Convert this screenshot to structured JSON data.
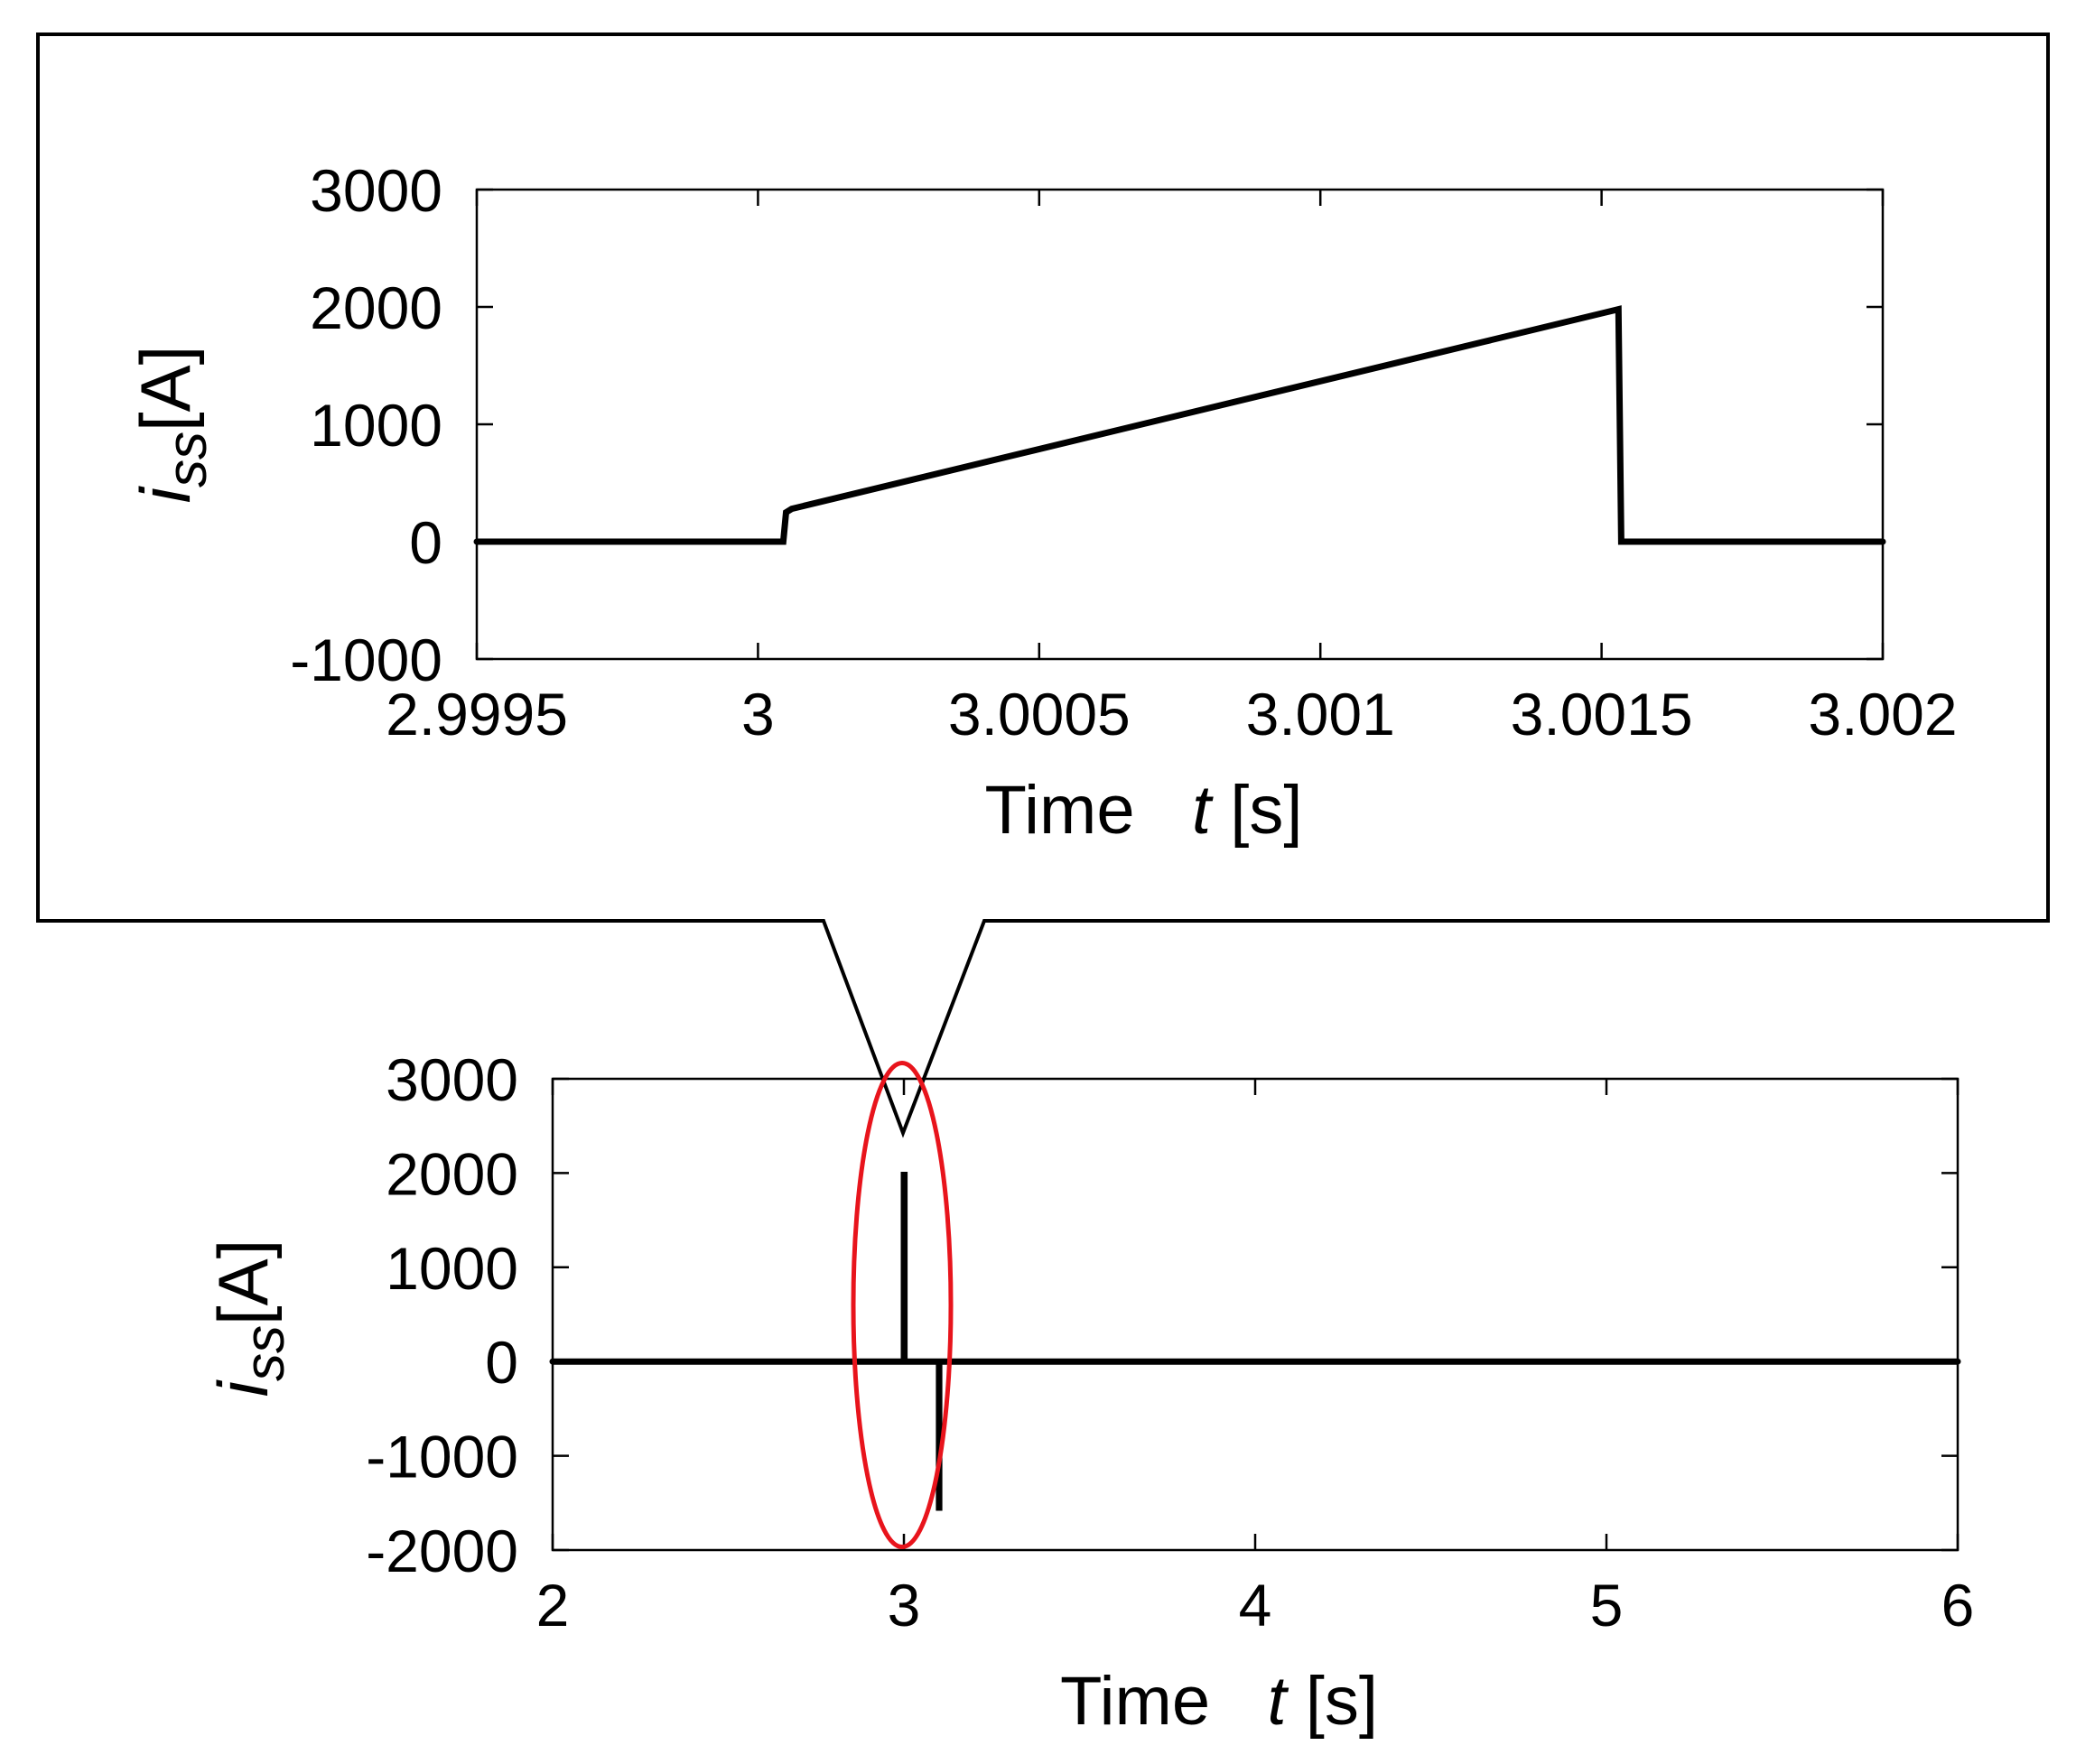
{
  "chart_data": [
    {
      "type": "line",
      "role": "inset-zoom",
      "xlabel": {
        "prefix": "Time",
        "var": "t",
        "unit": "[s]"
      },
      "ylabel": {
        "var": "i",
        "sub": "ss",
        "unit": "[A]"
      },
      "xlim": [
        2.9995,
        3.002
      ],
      "ylim": [
        -1000,
        3000
      ],
      "xticks": [
        2.9995,
        3.0,
        3.0005,
        3.001,
        3.0015,
        3.002
      ],
      "xtick_labels": [
        "2.9995",
        "3",
        "3.0005",
        "3.001",
        "3.0015",
        "3.002"
      ],
      "yticks": [
        -1000,
        0,
        1000,
        2000,
        3000
      ],
      "ytick_labels": [
        "-1000",
        "0",
        "1000",
        "2000",
        "3000"
      ],
      "grid": false,
      "series": [
        {
          "color": "#000000",
          "x": [
            2.9995,
            3.000045,
            3.00005,
            3.00006,
            3.00153,
            3.001535,
            3.002
          ],
          "y": [
            0,
            0,
            250,
            280,
            1980,
            0,
            0
          ]
        }
      ]
    },
    {
      "type": "line",
      "role": "main",
      "xlabel": {
        "prefix": "Time",
        "var": "t",
        "unit": "[s]"
      },
      "ylabel": {
        "var": "i",
        "sub": "ss",
        "unit": "[A]"
      },
      "xlim": [
        2,
        6
      ],
      "ylim": [
        -2000,
        3000
      ],
      "xticks": [
        2,
        3,
        4,
        5,
        6
      ],
      "xtick_labels": [
        "2",
        "3",
        "4",
        "5",
        "6"
      ],
      "yticks": [
        -2000,
        -1000,
        0,
        1000,
        2000,
        3000
      ],
      "ytick_labels": [
        "-2000",
        "-1000",
        "0",
        "1000",
        "2000",
        "3000"
      ],
      "grid": false,
      "series": [
        {
          "color": "#000000",
          "x": [
            2,
            3.0,
            3.0,
            3.0015,
            3.0015,
            3.1,
            3.1,
            3.1005,
            3.1005,
            6
          ],
          "y": [
            0,
            0,
            1980,
            1980,
            0,
            0,
            -1550,
            -1550,
            0,
            0
          ]
        }
      ],
      "highlight_color": "#e8141c"
    }
  ]
}
